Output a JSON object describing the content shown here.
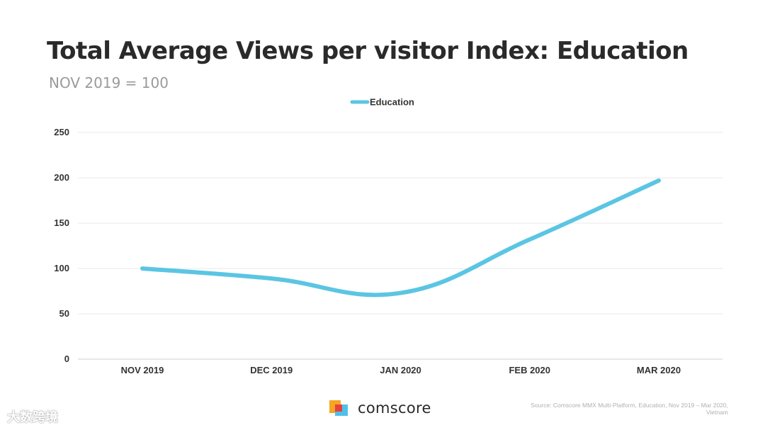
{
  "title": "Total Average Views per visitor Index: Education",
  "subtitle": "NOV 2019 = 100",
  "chart_data": {
    "type": "line",
    "categories": [
      "NOV 2019",
      "DEC 2019",
      "JAN 2020",
      "FEB 2020",
      "MAR 2020"
    ],
    "series": [
      {
        "name": "Education",
        "values": [
          100,
          89,
          73,
          132,
          197
        ],
        "color": "#5bc5e3"
      }
    ],
    "yticks": [
      "0",
      "50",
      "100",
      "150",
      "200",
      "250"
    ],
    "ylim": [
      0,
      250
    ],
    "grid": true,
    "legend_position": "top-center"
  },
  "footer": {
    "brand": "comscore",
    "source": "Source: Comscore MMX Multi-Platform, Education, Nov 2019 – Mar 2020, Vietnam",
    "watermark": "大数跨境"
  }
}
